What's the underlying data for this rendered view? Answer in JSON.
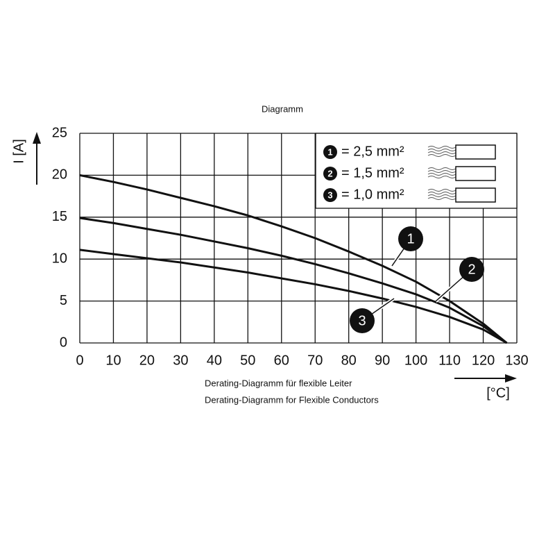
{
  "chart_data": {
    "type": "line",
    "title": "Diagramm",
    "x_label": "[°C]",
    "y_label": "I [A]",
    "captions": [
      "Derating-Diagramm für flexible Leiter",
      "Derating-Diagramm for Flexible Conductors"
    ],
    "x": [
      0,
      10,
      20,
      30,
      40,
      50,
      60,
      70,
      80,
      90,
      100,
      110,
      120,
      127
    ],
    "series": [
      {
        "name": "= 2,5 mm²",
        "label": "1",
        "color": "#111111",
        "values": [
          20,
          19.2,
          18.3,
          17.3,
          16.3,
          15.2,
          13.9,
          12.5,
          10.9,
          9.2,
          7.3,
          5.0,
          2.3,
          0
        ]
      },
      {
        "name": "= 1,5 mm²",
        "label": "2",
        "color": "#111111",
        "values": [
          14.9,
          14.3,
          13.6,
          12.9,
          12.1,
          11.3,
          10.4,
          9.4,
          8.3,
          7.1,
          5.8,
          4.2,
          2.0,
          0
        ]
      },
      {
        "name": "= 1,0 mm²",
        "label": "3",
        "color": "#111111",
        "values": [
          11.1,
          10.6,
          10.1,
          9.6,
          9.0,
          8.4,
          7.7,
          7.0,
          6.2,
          5.3,
          4.3,
          3.1,
          1.6,
          0
        ]
      }
    ],
    "xlim": [
      0,
      130
    ],
    "ylim": [
      0,
      25
    ],
    "xticks": [
      0,
      10,
      20,
      30,
      40,
      50,
      60,
      70,
      80,
      90,
      100,
      110,
      120,
      130
    ],
    "yticks": [
      0,
      5,
      10,
      15,
      20,
      25
    ],
    "grid": true
  }
}
